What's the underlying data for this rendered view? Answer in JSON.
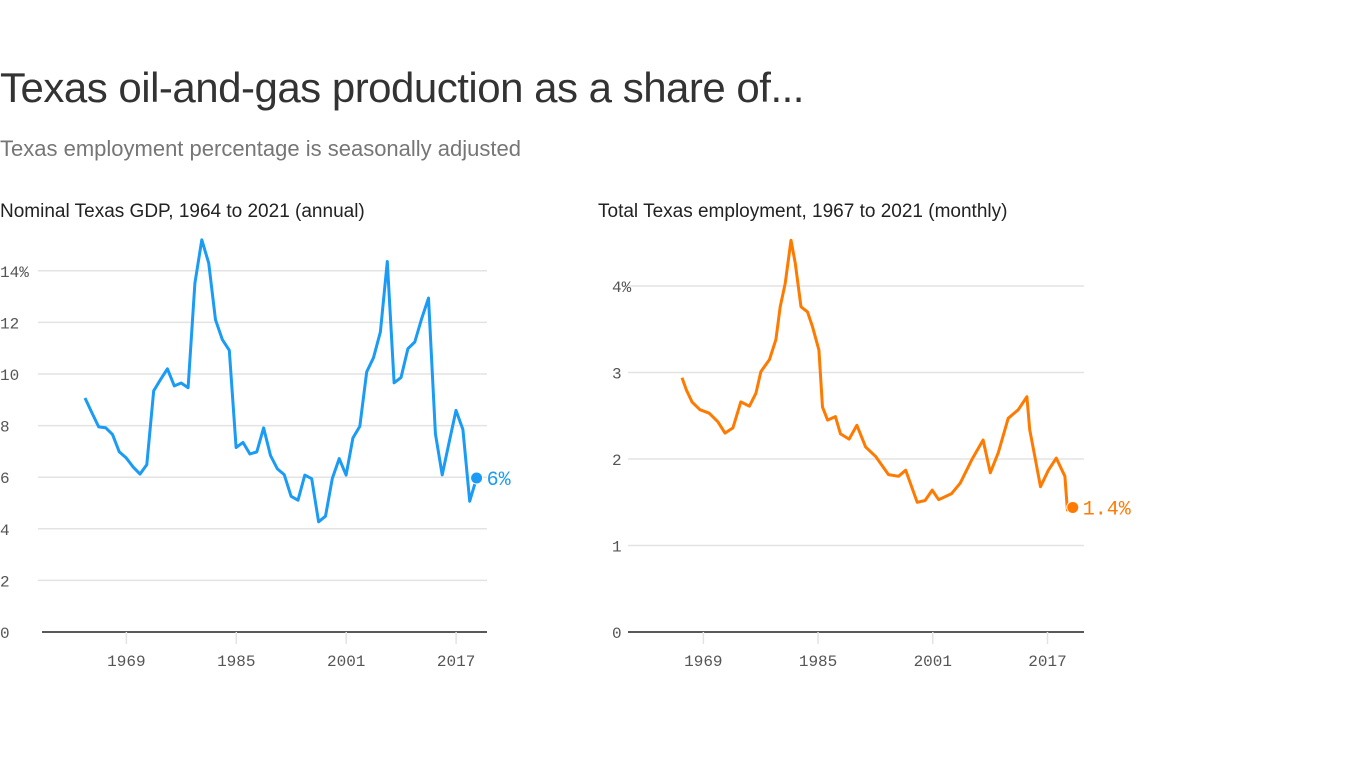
{
  "title": "Texas oil-and-gas production as a share of...",
  "subtitle": "Texas employment percentage is seasonally adjusted",
  "chart_data": [
    {
      "type": "line",
      "title": "Nominal Texas GDP, 1964 to 2021 (annual)",
      "color": "#1a9bf5",
      "ylim": [
        0,
        15
      ],
      "yticks": [
        0,
        2,
        4,
        6,
        8,
        10,
        12,
        14
      ],
      "ytick_labels": [
        "0",
        "2",
        "4",
        "6",
        "8",
        "10",
        "12",
        "14%"
      ],
      "xticks": [
        1969,
        1985,
        2001,
        2017
      ],
      "xlim": [
        1964,
        2021
      ],
      "grid": true,
      "end_label": "6%",
      "x": [
        1964,
        1965,
        1966,
        1967,
        1968,
        1969,
        1970,
        1971,
        1972,
        1973,
        1974,
        1975,
        1976,
        1977,
        1978,
        1979,
        1980,
        1981,
        1982,
        1983,
        1984,
        1985,
        1986,
        1987,
        1988,
        1989,
        1990,
        1991,
        1992,
        1993,
        1994,
        1995,
        1996,
        1997,
        1998,
        1999,
        2000,
        2001,
        2002,
        2003,
        2004,
        2005,
        2006,
        2007,
        2008,
        2009,
        2010,
        2011,
        2012,
        2013,
        2014,
        2015,
        2016,
        2017,
        2018,
        2019,
        2020,
        2021
      ],
      "y": [
        9.07,
        8.5,
        7.95,
        7.92,
        7.66,
        6.98,
        6.75,
        6.4,
        6.12,
        6.49,
        9.35,
        9.79,
        10.2,
        9.54,
        9.65,
        9.47,
        13.52,
        15.2,
        14.3,
        12.1,
        11.33,
        10.92,
        7.15,
        7.35,
        6.9,
        6.98,
        7.91,
        6.84,
        6.32,
        6.1,
        5.26,
        5.11,
        6.08,
        5.94,
        4.27,
        4.49,
        5.95,
        6.72,
        6.08,
        7.52,
        7.97,
        10.08,
        10.63,
        11.63,
        14.36,
        9.66,
        9.86,
        10.98,
        11.24,
        12.14,
        12.94,
        7.69,
        6.09,
        7.35,
        8.59,
        7.85,
        5.07,
        5.97
      ]
    },
    {
      "type": "line",
      "title": "Total Texas employment, 1967 to 2021 (monthly)",
      "color": "#ff7a00",
      "ylim": [
        0,
        4.6
      ],
      "yticks": [
        0,
        1,
        2,
        3,
        4
      ],
      "ytick_labels": [
        "0",
        "1",
        "2",
        "3",
        "4%"
      ],
      "xticks": [
        1969,
        1985,
        2001,
        2017
      ],
      "xlim": [
        1967,
        2021.5
      ],
      "grid": true,
      "end_label": "1.4%",
      "x": [
        1967.0,
        1967.6,
        1968.4,
        1969.5,
        1970.8,
        1972.0,
        1973.0,
        1974.1,
        1975.2,
        1976.4,
        1977.3,
        1978.0,
        1979.2,
        1980.1,
        1980.7,
        1981.4,
        1982.2,
        1982.8,
        1983.6,
        1984.5,
        1985.2,
        1986.1,
        1986.6,
        1987.3,
        1988.4,
        1989.1,
        1990.3,
        1991.4,
        1992.6,
        1994.0,
        1995.8,
        1997.2,
        1998.2,
        1999.8,
        2000.9,
        2001.9,
        2002.8,
        2004.6,
        2005.8,
        2007.4,
        2009.0,
        2010.0,
        2011.1,
        2012.5,
        2013.9,
        2015.1,
        2015.5,
        2016.2,
        2017.0,
        2018.1,
        2019.2,
        2020.4,
        2020.75,
        2021.5
      ],
      "y": [
        2.94,
        2.8,
        2.66,
        2.57,
        2.53,
        2.43,
        2.3,
        2.36,
        2.66,
        2.61,
        2.76,
        3.01,
        3.15,
        3.38,
        3.76,
        4.03,
        4.53,
        4.26,
        3.76,
        3.7,
        3.53,
        3.26,
        2.6,
        2.45,
        2.49,
        2.29,
        2.23,
        2.39,
        2.14,
        2.03,
        1.82,
        1.8,
        1.87,
        1.5,
        1.52,
        1.64,
        1.53,
        1.6,
        1.72,
        1.99,
        2.22,
        1.84,
        2.07,
        2.47,
        2.57,
        2.72,
        2.34,
        2.03,
        1.68,
        1.87,
        2.01,
        1.8,
        1.41,
        1.44
      ]
    }
  ]
}
